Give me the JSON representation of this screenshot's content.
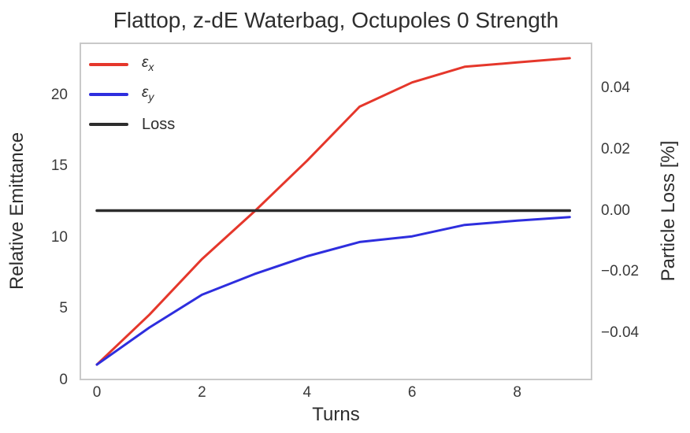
{
  "chart_data": {
    "type": "line",
    "title": "Flattop, z-dE Waterbag, Octupoles 0 Strength",
    "xlabel": "Turns",
    "ylabel_left": "Relative Emittance",
    "ylabel_right": "Particle Loss [%]",
    "grid": false,
    "legend_position": "upper-left",
    "x": [
      0,
      1,
      2,
      3,
      4,
      5,
      6,
      7,
      8,
      9
    ],
    "series": [
      {
        "name": "epsilon_x",
        "legend_base": "ε",
        "legend_sub": "x",
        "axis": "left",
        "color": "#e5372b",
        "line_width": 3,
        "values": [
          1.1,
          4.6,
          8.5,
          11.85,
          15.4,
          19.2,
          20.9,
          22.0,
          22.3,
          22.6
        ]
      },
      {
        "name": "epsilon_y",
        "legend_base": "ε",
        "legend_sub": "y",
        "axis": "left",
        "color": "#2e2ede",
        "line_width": 3,
        "values": [
          1.1,
          3.7,
          6.0,
          7.45,
          8.7,
          9.7,
          10.1,
          10.9,
          11.2,
          11.45
        ]
      },
      {
        "name": "loss",
        "legend_base": "Loss",
        "legend_sub": "",
        "axis": "right",
        "color": "#2d2d2d",
        "line_width": 3.5,
        "values": [
          0,
          0,
          0,
          0,
          0,
          0,
          0,
          0,
          0,
          0
        ]
      }
    ],
    "xlim": [
      -0.33,
      9.43
    ],
    "ylim_left": [
      0,
      23.7
    ],
    "ylim_right": [
      -0.0555,
      0.055
    ],
    "x_ticks": [
      {
        "value": 0,
        "label": "0"
      },
      {
        "value": 2,
        "label": "2"
      },
      {
        "value": 4,
        "label": "4"
      },
      {
        "value": 6,
        "label": "6"
      },
      {
        "value": 8,
        "label": "8"
      }
    ],
    "y_ticks_left": [
      {
        "value": 0,
        "label": "0"
      },
      {
        "value": 5,
        "label": "5"
      },
      {
        "value": 10,
        "label": "10"
      },
      {
        "value": 15,
        "label": "15"
      },
      {
        "value": 20,
        "label": "20"
      }
    ],
    "y_ticks_right": [
      {
        "value": 0.04,
        "label": "0.04"
      },
      {
        "value": 0.02,
        "label": "0.02"
      },
      {
        "value": 0.0,
        "label": "0.00"
      },
      {
        "value": -0.02,
        "label": "−0.02"
      },
      {
        "value": -0.04,
        "label": "−0.04"
      }
    ],
    "spine_color": "#c9c9c9"
  }
}
